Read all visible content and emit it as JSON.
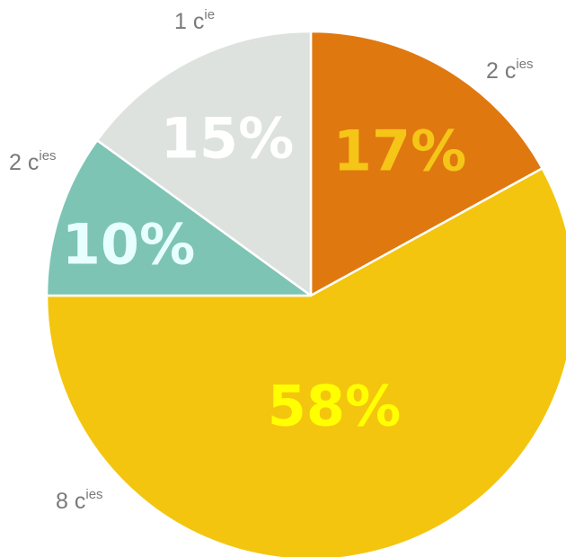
{
  "chart_data": {
    "type": "pie",
    "slices": [
      {
        "category": "2 cies",
        "label_main": "2 c",
        "label_sup": "ies",
        "value": 17,
        "value_label": "17%",
        "color": "#E07810",
        "label_color": "#F5C518"
      },
      {
        "category": "8 cies",
        "label_main": "8 c",
        "label_sup": "ies",
        "value": 58,
        "value_label": "58%",
        "color": "#F4C50F",
        "label_color": "#FFFF00"
      },
      {
        "category": "2 cies",
        "label_main": "2 c",
        "label_sup": "ies",
        "value": 10,
        "value_label": "10%",
        "color": "#7DC4B5",
        "label_color": "#E8FFFF"
      },
      {
        "category": "1 cie",
        "label_main": "1 c",
        "label_sup": "ie",
        "value": 15,
        "value_label": "15%",
        "color": "#DDE2DF",
        "label_color": "#FFFFFF"
      }
    ],
    "start": "top",
    "direction": "clockwise",
    "legend": "none"
  }
}
